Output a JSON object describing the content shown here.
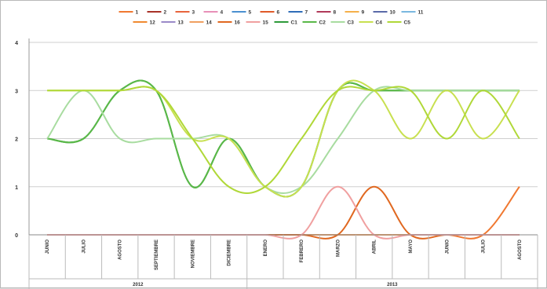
{
  "chart_data": {
    "type": "line",
    "title": "",
    "xlabel": "",
    "ylabel": "",
    "ylim": [
      0,
      4
    ],
    "yticks": [
      "0",
      "1",
      "2",
      "3",
      "4"
    ],
    "grid": "horizontal",
    "legend_position": "top",
    "categories": [
      "JUNIO",
      "JULIO",
      "AGOSTO",
      "SEPTIEMBRE",
      "NOVIEMBRE",
      "DICIEMBRE",
      "ENERO",
      "FEBRERO",
      "MARZO",
      "ABRIL",
      "MAYO",
      "JUNIO",
      "JULIO",
      "AGOSTO"
    ],
    "year_groups": [
      {
        "label": "2012",
        "span": 6
      },
      {
        "label": "2013",
        "span": 8
      }
    ],
    "series": [
      {
        "name": "1",
        "color": "#f07830",
        "values": [
          0,
          0,
          0,
          0,
          0,
          0,
          0,
          0,
          0,
          0,
          0,
          0,
          0,
          0
        ]
      },
      {
        "name": "2",
        "color": "#a83228",
        "values": [
          0,
          0,
          0,
          0,
          0,
          0,
          0,
          0,
          0,
          0,
          0,
          0,
          0,
          0
        ]
      },
      {
        "name": "3",
        "color": "#e8643c",
        "values": [
          0,
          0,
          0,
          0,
          0,
          0,
          0,
          0,
          0,
          0,
          0,
          0,
          0,
          0
        ]
      },
      {
        "name": "4",
        "color": "#e890b8",
        "values": [
          0,
          0,
          0,
          0,
          0,
          0,
          0,
          0,
          0,
          0,
          0,
          0,
          0,
          0
        ]
      },
      {
        "name": "5",
        "color": "#4a90d0",
        "values": [
          0,
          0,
          0,
          0,
          0,
          0,
          0,
          0,
          0,
          0,
          0,
          0,
          0,
          0
        ]
      },
      {
        "name": "6",
        "color": "#e05a28",
        "values": [
          0,
          0,
          0,
          0,
          0,
          0,
          0,
          0,
          0,
          0,
          0,
          0,
          0,
          0
        ]
      },
      {
        "name": "7",
        "color": "#2f6db8",
        "values": [
          0,
          0,
          0,
          0,
          0,
          0,
          0,
          0,
          0,
          0,
          0,
          0,
          0,
          0
        ]
      },
      {
        "name": "8",
        "color": "#b03a5a",
        "values": [
          0,
          0,
          0,
          0,
          0,
          0,
          0,
          0,
          0,
          0,
          0,
          0,
          0,
          0
        ]
      },
      {
        "name": "9",
        "color": "#f5b04a",
        "values": [
          0,
          0,
          0,
          0,
          0,
          0,
          0,
          0,
          0,
          0,
          0,
          0,
          0,
          0
        ]
      },
      {
        "name": "10",
        "color": "#5a6aa8",
        "values": [
          0,
          0,
          0,
          0,
          0,
          0,
          0,
          0,
          0,
          0,
          0,
          0,
          0,
          0
        ]
      },
      {
        "name": "11",
        "color": "#7ab8e0",
        "values": [
          0,
          0,
          0,
          0,
          0,
          0,
          0,
          0,
          0,
          0,
          0,
          0,
          0,
          0
        ]
      },
      {
        "name": "12",
        "color": "#f08a30",
        "values": [
          0,
          0,
          0,
          0,
          0,
          0,
          0,
          0,
          0,
          0,
          0,
          0,
          0,
          0
        ]
      },
      {
        "name": "13",
        "color": "#9a8ac8",
        "values": [
          0,
          0,
          0,
          0,
          0,
          0,
          0,
          0,
          0,
          0,
          0,
          0,
          0,
          0
        ]
      },
      {
        "name": "14",
        "color": "#f0a060",
        "values": [
          0,
          0,
          0,
          0,
          0,
          0,
          0,
          0,
          0,
          0,
          0,
          0,
          0,
          0
        ]
      },
      {
        "name": "16",
        "color": "#e06820",
        "values": [
          0,
          0,
          0,
          0,
          0,
          0,
          0,
          0,
          0,
          1,
          0,
          0,
          0,
          0
        ]
      },
      {
        "name": "15",
        "color": "#f0a0a0",
        "values": [
          0,
          0,
          0,
          0,
          0,
          0,
          0,
          0,
          1,
          0,
          0,
          0,
          0,
          0
        ]
      },
      {
        "name": "C1",
        "color": "#2e9a3a",
        "values": [
          2,
          2,
          3,
          3,
          1,
          2,
          1,
          1,
          3,
          3,
          3,
          3,
          3,
          3
        ]
      },
      {
        "name": "C2",
        "color": "#5ab848",
        "values": [
          2,
          2,
          3,
          3,
          1,
          2,
          1,
          1,
          3,
          3,
          3,
          3,
          3,
          3
        ]
      },
      {
        "name": "C3",
        "color": "#a8dca0",
        "values": [
          2,
          3,
          2,
          2,
          2,
          2,
          1,
          1,
          2,
          3,
          3,
          3,
          3,
          3
        ]
      },
      {
        "name": "C4",
        "color": "#c8e050",
        "values": [
          3,
          3,
          3,
          3,
          2,
          2,
          1,
          1,
          3,
          3,
          2,
          3,
          2,
          3
        ]
      },
      {
        "name": "C5",
        "color": "#b0d838",
        "values": [
          3,
          3,
          3,
          3,
          2,
          1,
          1,
          2,
          3,
          3,
          3,
          2,
          3,
          2
        ]
      }
    ],
    "extra_points": {
      "series": "1",
      "index": 13,
      "value": 1
    }
  }
}
